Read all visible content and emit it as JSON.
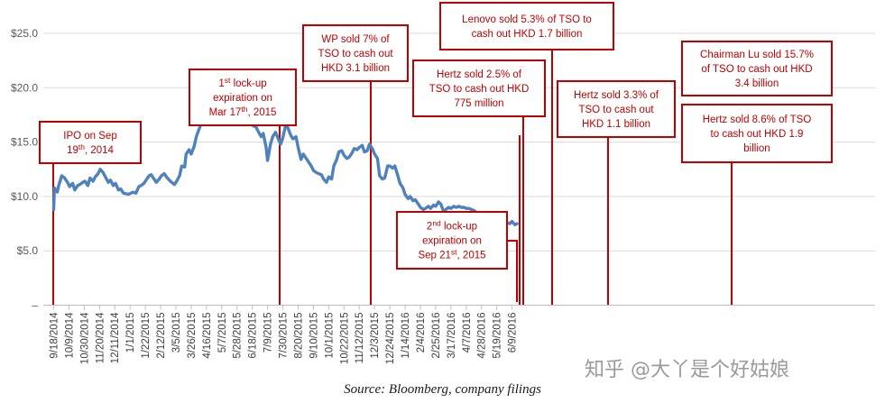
{
  "chart_data": {
    "type": "line",
    "ylim": [
      0,
      27
    ],
    "y_ticks": [
      {
        "value": 25,
        "label": "$25.0"
      },
      {
        "value": 20,
        "label": "$20.0"
      },
      {
        "value": 15,
        "label": "$15.0"
      },
      {
        "value": 10,
        "label": "$10.0"
      },
      {
        "value": 5,
        "label": "$5.0"
      },
      {
        "value": 0,
        "label": "–"
      }
    ],
    "x_tick_labels": [
      "9/18/2014",
      "10/9/2014",
      "10/30/2014",
      "11/20/2014",
      "12/11/2014",
      "1/1/2015",
      "1/22/2015",
      "2/12/2015",
      "3/5/2015",
      "3/26/2015",
      "4/16/2015",
      "5/7/2015",
      "5/28/2015",
      "6/18/2015",
      "7/9/2015",
      "7/30/2015",
      "8/20/2015",
      "9/10/2015",
      "10/1/2015",
      "10/22/2015",
      "11/12/2015",
      "12/3/2015",
      "12/24/2015",
      "1/14/2016",
      "2/4/2016",
      "2/25/2016",
      "3/17/2016",
      "4/7/2016",
      "4/28/2016",
      "5/19/2016",
      "6/9/2016"
    ],
    "grid": "horizontal",
    "series": [
      {
        "color": "#4f81bd",
        "points": [
          [
            "9/18/2014",
            8.8
          ],
          [
            "9/19/2014",
            10.8
          ],
          [
            "9/23/2014",
            10.4
          ],
          [
            "9/25/2014",
            11.0
          ],
          [
            "9/29/2014",
            11.9
          ],
          [
            "10/3/2014",
            11.7
          ],
          [
            "10/7/2014",
            11.3
          ],
          [
            "10/10/2014",
            10.9
          ],
          [
            "10/14/2014",
            11.2
          ],
          [
            "10/17/2014",
            10.6
          ],
          [
            "10/21/2014",
            11.0
          ],
          [
            "10/24/2014",
            11.1
          ],
          [
            "10/28/2014",
            11.3
          ],
          [
            "10/31/2014",
            11.4
          ],
          [
            "11/4/2014",
            11.0
          ],
          [
            "11/7/2014",
            11.7
          ],
          [
            "11/11/2014",
            11.4
          ],
          [
            "11/14/2014",
            11.8
          ],
          [
            "11/18/2014",
            12.1
          ],
          [
            "11/21/2014",
            12.5
          ],
          [
            "11/25/2014",
            12.2
          ],
          [
            "11/28/2014",
            11.8
          ],
          [
            "12/2/2014",
            11.3
          ],
          [
            "12/5/2014",
            11.5
          ],
          [
            "12/9/2014",
            11.0
          ],
          [
            "12/12/2014",
            11.2
          ],
          [
            "12/16/2014",
            10.6
          ],
          [
            "12/19/2014",
            10.7
          ],
          [
            "12/23/2014",
            10.3
          ],
          [
            "12/30/2014",
            10.2
          ],
          [
            "1/5/2015",
            10.4
          ],
          [
            "1/9/2015",
            10.3
          ],
          [
            "1/13/2015",
            10.9
          ],
          [
            "1/16/2015",
            11.0
          ],
          [
            "1/20/2015",
            11.2
          ],
          [
            "1/23/2015",
            11.5
          ],
          [
            "1/27/2015",
            11.9
          ],
          [
            "1/30/2015",
            12.0
          ],
          [
            "2/3/2015",
            11.6
          ],
          [
            "2/6/2015",
            11.3
          ],
          [
            "2/10/2015",
            11.6
          ],
          [
            "2/13/2015",
            11.9
          ],
          [
            "2/17/2015",
            12.1
          ],
          [
            "2/20/2015",
            11.8
          ],
          [
            "2/24/2015",
            11.5
          ],
          [
            "2/27/2015",
            11.3
          ],
          [
            "3/3/2015",
            11.1
          ],
          [
            "3/6/2015",
            11.4
          ],
          [
            "3/10/2015",
            11.9
          ],
          [
            "3/13/2015",
            12.8
          ],
          [
            "3/17/2015",
            12.7
          ],
          [
            "3/19/2015",
            13.9
          ],
          [
            "3/23/2015",
            14.3
          ],
          [
            "3/26/2015",
            13.9
          ],
          [
            "3/30/2015",
            14.6
          ],
          [
            "4/2/2015",
            15.5
          ],
          [
            "4/7/2015",
            16.4
          ],
          [
            "4/10/2015",
            17.0
          ],
          [
            "4/14/2015",
            17.6
          ],
          [
            "4/17/2015",
            18.1
          ],
          [
            "4/21/2015",
            17.3
          ],
          [
            "4/24/2015",
            17.8
          ],
          [
            "4/28/2015",
            17.4
          ],
          [
            "5/1/2015",
            18.0
          ],
          [
            "5/5/2015",
            17.6
          ],
          [
            "5/8/2015",
            17.9
          ],
          [
            "5/12/2015",
            18.2
          ],
          [
            "5/15/2015",
            17.7
          ],
          [
            "5/19/2015",
            18.0
          ],
          [
            "5/22/2015",
            19.7
          ],
          [
            "5/26/2015",
            20.0
          ],
          [
            "5/29/2015",
            19.6
          ],
          [
            "6/2/2015",
            18.4
          ],
          [
            "6/5/2015",
            18.9
          ],
          [
            "6/9/2015",
            17.9
          ],
          [
            "6/12/2015",
            16.8
          ],
          [
            "6/16/2015",
            17.0
          ],
          [
            "6/19/2015",
            16.5
          ],
          [
            "6/23/2015",
            16.4
          ],
          [
            "6/26/2015",
            16.0
          ],
          [
            "6/30/2015",
            15.5
          ],
          [
            "7/3/2015",
            15.8
          ],
          [
            "7/7/2015",
            14.5
          ],
          [
            "7/9/2015",
            13.3
          ],
          [
            "7/13/2015",
            14.8
          ],
          [
            "7/16/2015",
            15.5
          ],
          [
            "7/20/2015",
            15.9
          ],
          [
            "7/23/2015",
            15.4
          ],
          [
            "7/27/2015",
            14.8
          ],
          [
            "7/30/2015",
            15.4
          ],
          [
            "8/3/2015",
            16.6
          ],
          [
            "8/6/2015",
            16.3
          ],
          [
            "8/10/2015",
            15.6
          ],
          [
            "8/13/2015",
            15.3
          ],
          [
            "8/17/2015",
            15.5
          ],
          [
            "8/20/2015",
            14.5
          ],
          [
            "8/24/2015",
            13.4
          ],
          [
            "8/27/2015",
            13.9
          ],
          [
            "8/31/2015",
            13.5
          ],
          [
            "9/3/2015",
            13.2
          ],
          [
            "9/7/2015",
            12.8
          ],
          [
            "9/10/2015",
            12.4
          ],
          [
            "9/14/2015",
            12.2
          ],
          [
            "9/17/2015",
            12.1
          ],
          [
            "9/21/2015",
            12.0
          ],
          [
            "9/24/2015",
            11.6
          ],
          [
            "9/28/2015",
            11.3
          ],
          [
            "10/1/2015",
            11.8
          ],
          [
            "10/5/2015",
            11.6
          ],
          [
            "10/8/2015",
            12.8
          ],
          [
            "10/12/2015",
            13.4
          ],
          [
            "10/15/2015",
            14.1
          ],
          [
            "10/19/2015",
            14.2
          ],
          [
            "10/22/2015",
            13.8
          ],
          [
            "10/26/2015",
            13.5
          ],
          [
            "10/29/2015",
            13.6
          ],
          [
            "11/2/2015",
            14.0
          ],
          [
            "11/5/2015",
            14.4
          ],
          [
            "11/9/2015",
            14.3
          ],
          [
            "11/12/2015",
            14.5
          ],
          [
            "11/16/2015",
            14.7
          ],
          [
            "11/19/2015",
            14.1
          ],
          [
            "11/23/2015",
            14.2
          ],
          [
            "11/26/2015",
            14.8
          ],
          [
            "11/30/2015",
            14.4
          ],
          [
            "12/3/2015",
            13.9
          ],
          [
            "12/7/2015",
            13.5
          ],
          [
            "12/10/2015",
            11.9
          ],
          [
            "12/14/2015",
            11.6
          ],
          [
            "12/17/2015",
            11.7
          ],
          [
            "12/21/2015",
            12.8
          ],
          [
            "12/24/2015",
            12.8
          ],
          [
            "12/28/2015",
            12.6
          ],
          [
            "12/31/2015",
            12.8
          ],
          [
            "1/4/2016",
            11.9
          ],
          [
            "1/7/2016",
            11.2
          ],
          [
            "1/11/2016",
            10.8
          ],
          [
            "1/14/2016",
            10.2
          ],
          [
            "1/18/2016",
            9.8
          ],
          [
            "1/21/2016",
            10.0
          ],
          [
            "1/25/2016",
            9.6
          ],
          [
            "1/28/2016",
            9.7
          ],
          [
            "2/1/2016",
            9.3
          ],
          [
            "2/4/2016",
            9.0
          ],
          [
            "2/8/2016",
            8.8
          ],
          [
            "2/11/2016",
            8.9
          ],
          [
            "2/15/2016",
            9.1
          ],
          [
            "2/18/2016",
            8.9
          ],
          [
            "2/22/2016",
            9.2
          ],
          [
            "2/25/2016",
            9.1
          ],
          [
            "2/29/2016",
            9.5
          ],
          [
            "3/3/2016",
            9.3
          ],
          [
            "3/7/2016",
            8.6
          ],
          [
            "3/10/2016",
            8.8
          ],
          [
            "3/14/2016",
            9.0
          ],
          [
            "3/17/2016",
            8.9
          ],
          [
            "3/21/2016",
            9.1
          ],
          [
            "3/24/2016",
            9.0
          ],
          [
            "3/28/2016",
            9.1
          ],
          [
            "3/31/2016",
            9.0
          ],
          [
            "4/4/2016",
            9.0
          ],
          [
            "4/7/2016",
            8.9
          ],
          [
            "4/11/2016",
            8.9
          ],
          [
            "4/14/2016",
            8.8
          ],
          [
            "4/18/2016",
            8.7
          ],
          [
            "4/21/2016",
            8.5
          ],
          [
            "4/25/2016",
            8.3
          ],
          [
            "4/28/2016",
            8.2
          ],
          [
            "5/2/2016",
            7.9
          ],
          [
            "5/5/2016",
            8.1
          ],
          [
            "5/9/2016",
            7.6
          ],
          [
            "5/12/2016",
            7.5
          ],
          [
            "5/16/2016",
            7.6
          ],
          [
            "5/19/2016",
            7.4
          ],
          [
            "5/23/2016",
            7.6
          ],
          [
            "5/26/2016",
            7.5
          ],
          [
            "5/30/2016",
            7.5
          ],
          [
            "6/2/2016",
            7.6
          ],
          [
            "6/6/2016",
            7.5
          ],
          [
            "6/9/2016",
            7.7
          ],
          [
            "6/13/2016",
            7.4
          ],
          [
            "6/16/2016",
            7.5
          ]
        ]
      }
    ]
  },
  "annotations": [
    {
      "id": "ipo",
      "lines": [
        "IPO on Sep",
        "19th, 2014"
      ]
    },
    {
      "id": "lockup1",
      "lines": [
        "1st lock-up",
        "expiration on",
        "Mar 17th, 2015"
      ]
    },
    {
      "id": "wp",
      "lines": [
        "WP sold 7% of",
        "TSO to cash out",
        "HKD 3.1 billion"
      ]
    },
    {
      "id": "hertz25",
      "lines": [
        "Hertz sold 2.5% of",
        "TSO to cash out HKD",
        "775 million"
      ]
    },
    {
      "id": "lenovo",
      "lines": [
        "Lenovo sold 5.3% of TSO to",
        "cash out HKD 1.7 billion"
      ]
    },
    {
      "id": "hertz33",
      "lines": [
        "Hertz sold 3.3% of",
        "TSO to cash out",
        "HKD 1.1 billion"
      ]
    },
    {
      "id": "luchair",
      "lines": [
        "Chairman Lu sold 15.7%",
        "of TSO to cash out HKD",
        "3.4 billion"
      ]
    },
    {
      "id": "hertz86",
      "lines": [
        "Hertz sold 8.6% of TSO",
        "to cash out HKD 1.9",
        "billion"
      ]
    },
    {
      "id": "lockup2",
      "lines": [
        "2nd lock-up",
        "expiration on",
        "Sep 21st, 2015"
      ]
    }
  ],
  "source": "Source: Bloomberg, company filings",
  "watermark": "知乎 @大丫是个好姑娘"
}
